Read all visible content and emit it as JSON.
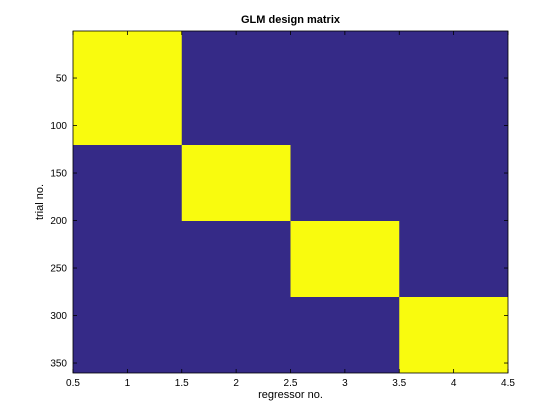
{
  "chart_data": {
    "type": "heatmap",
    "title": "GLM design matrix",
    "xlabel": "regressor no.",
    "ylabel": "trial no.",
    "xlim": [
      0.5,
      4.5
    ],
    "ylim": [
      0.5,
      360.5
    ],
    "y_reversed": true,
    "x_ticks": [
      0.5,
      1,
      1.5,
      2,
      2.5,
      3,
      3.5,
      4,
      4.5
    ],
    "x_tick_labels": [
      "0.5",
      "1",
      "1.5",
      "2",
      "2.5",
      "3",
      "3.5",
      "4",
      "4.5"
    ],
    "y_ticks": [
      50,
      100,
      150,
      200,
      250,
      300,
      350
    ],
    "y_tick_labels": [
      "50",
      "100",
      "150",
      "200",
      "250",
      "300",
      "350"
    ],
    "columns": [
      1,
      2,
      3,
      4
    ],
    "value_range": [
      0,
      1
    ],
    "colors": {
      "low": "#352a87",
      "high": "#f9fb0e",
      "axis": "#000000",
      "background": "#ffffff"
    },
    "regressors": [
      {
        "column": 1,
        "trial_start": 1,
        "trial_end": 120,
        "value": 1
      },
      {
        "column": 2,
        "trial_start": 121,
        "trial_end": 200,
        "value": 1
      },
      {
        "column": 3,
        "trial_start": 201,
        "trial_end": 280,
        "value": 1
      },
      {
        "column": 4,
        "trial_start": 281,
        "trial_end": 360,
        "value": 1
      }
    ]
  }
}
